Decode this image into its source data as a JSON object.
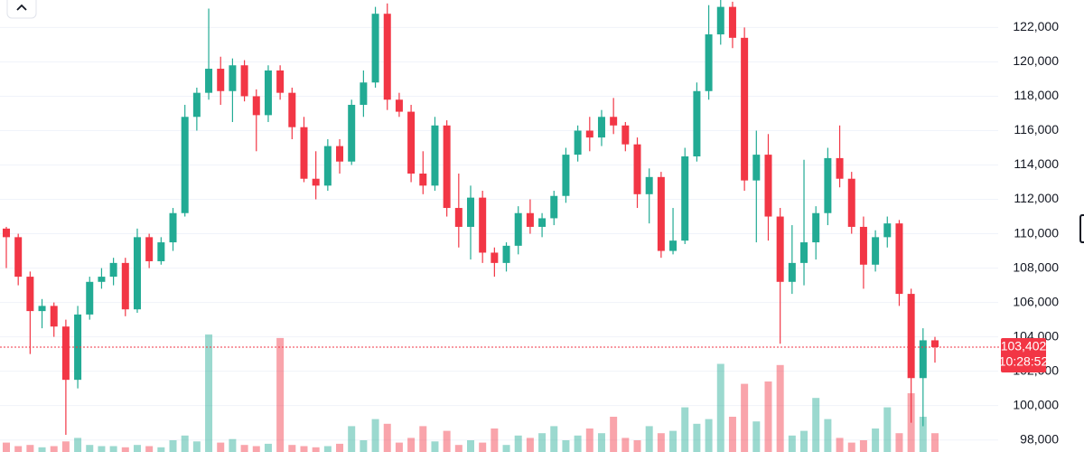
{
  "chart_data": {
    "type": "candlestick",
    "open": [
      110300,
      109800,
      107500,
      105500,
      105800,
      104600,
      101500,
      105300,
      107200,
      107500,
      108300,
      105600,
      109800,
      108400,
      109500,
      111200,
      116800,
      118200,
      119600,
      118300,
      119800,
      118000,
      116900,
      119500,
      118200,
      116200,
      113200,
      112800,
      115100,
      114200,
      117500,
      118800,
      122800,
      117800,
      117100,
      113500,
      112800,
      116300,
      111500,
      110400,
      112100,
      108900,
      108300,
      109300,
      111200,
      110400,
      110900,
      112200,
      114600,
      116000,
      115600,
      116800,
      116300,
      115200,
      112300,
      113300,
      109000,
      109600,
      114500,
      118300,
      121600,
      123200,
      121400,
      113100,
      114600,
      111000,
      107200,
      108300,
      109500,
      111200,
      114400,
      113200,
      110400,
      108200,
      109800,
      110600,
      106500,
      101600,
      103800
    ],
    "high": [
      110400,
      110000,
      107800,
      106200,
      106000,
      105000,
      105800,
      107500,
      108000,
      108600,
      108600,
      110300,
      110000,
      109800,
      111500,
      117500,
      118500,
      123100,
      120300,
      120200,
      120100,
      118400,
      119800,
      119800,
      118500,
      116800,
      114800,
      115500,
      115500,
      117800,
      119500,
      123200,
      123400,
      118200,
      117500,
      114800,
      116800,
      116600,
      113500,
      112800,
      112500,
      109200,
      109500,
      111600,
      112000,
      111200,
      112500,
      115000,
      116300,
      116800,
      117200,
      117900,
      116500,
      115600,
      113800,
      113600,
      111500,
      115000,
      118800,
      123300,
      123600,
      123500,
      122000,
      116000,
      115800,
      111500,
      110500,
      114300,
      111600,
      115000,
      116300,
      113600,
      111000,
      110200,
      111000,
      110800,
      106800,
      104500,
      104000
    ],
    "low": [
      108000,
      107000,
      103000,
      104500,
      104000,
      98300,
      101000,
      105000,
      106800,
      107000,
      105200,
      105400,
      108000,
      108200,
      109000,
      111000,
      116000,
      117800,
      117500,
      116500,
      117700,
      114800,
      116500,
      117800,
      115500,
      113000,
      112000,
      112500,
      113500,
      114000,
      116800,
      118500,
      117200,
      116800,
      113000,
      112300,
      112500,
      111000,
      109200,
      108500,
      108300,
      107500,
      107800,
      108800,
      110000,
      109800,
      110500,
      111800,
      114200,
      114800,
      115100,
      115800,
      114800,
      111500,
      110600,
      108600,
      108800,
      109400,
      114200,
      117800,
      121000,
      120800,
      112500,
      109500,
      109600,
      103600,
      106500,
      107000,
      108500,
      110500,
      112700,
      110000,
      106800,
      107800,
      109200,
      105800,
      99000,
      98800,
      102500
    ],
    "close": [
      109800,
      107500,
      105500,
      105800,
      104600,
      101500,
      105300,
      107200,
      107500,
      108300,
      105600,
      109800,
      108400,
      109500,
      111200,
      116800,
      118200,
      119600,
      118300,
      119800,
      118000,
      116900,
      119500,
      118200,
      116200,
      113200,
      112800,
      115100,
      114200,
      117500,
      118800,
      122800,
      117800,
      117100,
      113500,
      112800,
      116300,
      111500,
      110400,
      112100,
      108900,
      108300,
      109300,
      111200,
      110400,
      110900,
      112200,
      114600,
      116000,
      115600,
      116800,
      116300,
      115200,
      112300,
      113300,
      109000,
      109600,
      114500,
      118300,
      121600,
      123200,
      121400,
      113100,
      114600,
      111000,
      107200,
      108300,
      109500,
      111200,
      114400,
      113200,
      110400,
      108200,
      109800,
      110600,
      106500,
      101600,
      103800,
      103402
    ],
    "volume": [
      8,
      5,
      6,
      4,
      5,
      9,
      12,
      6,
      5,
      5,
      4,
      6,
      5,
      4,
      10,
      14,
      9,
      100,
      8,
      11,
      6,
      5,
      7,
      97,
      6,
      5,
      4,
      5,
      7,
      22,
      10,
      28,
      24,
      8,
      12,
      22,
      9,
      18,
      6,
      10,
      8,
      20,
      6,
      14,
      12,
      16,
      22,
      10,
      14,
      20,
      16,
      30,
      12,
      10,
      22,
      16,
      18,
      38,
      24,
      28,
      75,
      30,
      58,
      26,
      60,
      74,
      14,
      18,
      46,
      28,
      12,
      8,
      10,
      20,
      38,
      16,
      50,
      30,
      16
    ],
    "up_color": "#22ab94",
    "down_color": "#f23645",
    "ylim": [
      97300,
      123600
    ],
    "yticks": [
      {
        "value": 98000,
        "label": "98,000"
      },
      {
        "value": 100000,
        "label": "100,000"
      },
      {
        "value": 102000,
        "label": "102,000"
      },
      {
        "value": 104000,
        "label": "104,000"
      },
      {
        "value": 106000,
        "label": "106,000"
      },
      {
        "value": 108000,
        "label": "108,000"
      },
      {
        "value": 110000,
        "label": "110,000"
      },
      {
        "value": 112000,
        "label": "112,000"
      },
      {
        "value": 114000,
        "label": "114,000"
      },
      {
        "value": 116000,
        "label": "116,000"
      },
      {
        "value": 118000,
        "label": "118,000"
      },
      {
        "value": 120000,
        "label": "120,000"
      },
      {
        "value": 122000,
        "label": "122,000"
      }
    ],
    "grid": true,
    "last_price": 103402,
    "last_price_label": "103,402",
    "countdown": "10:28:52"
  }
}
